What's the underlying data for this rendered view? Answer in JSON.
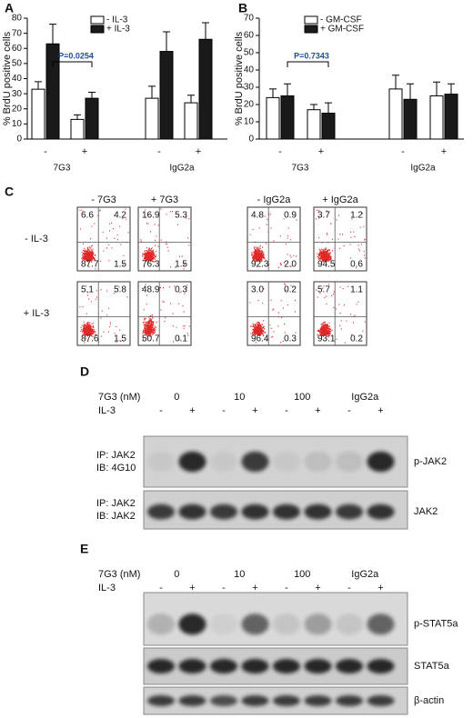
{
  "chart_data": [
    {
      "type": "bar",
      "panel": "A",
      "ylabel": "% BrdU positive cells",
      "categories": [
        "-",
        "+",
        "-",
        "+"
      ],
      "group_labels": [
        "7G3",
        "IgG2a"
      ],
      "series": [
        {
          "name": "- IL-3",
          "color": "#ffffff",
          "values": [
            33,
            13,
            27,
            24
          ],
          "errors": [
            5,
            3,
            8,
            5
          ]
        },
        {
          "name": "+ IL-3",
          "color": "#1a1a1a",
          "values": [
            63,
            27,
            58,
            66
          ],
          "errors": [
            13,
            4,
            13,
            11
          ]
        }
      ],
      "ylim": [
        0,
        80
      ],
      "yticks": [
        0,
        10,
        20,
        30,
        40,
        50,
        60,
        70,
        80
      ],
      "annotations": [
        "P=0.0254"
      ]
    },
    {
      "type": "bar",
      "panel": "B",
      "ylabel": "% BrdU positive cells",
      "categories": [
        "-",
        "+",
        "-",
        "+"
      ],
      "group_labels": [
        "7G3",
        "IgG2a"
      ],
      "series": [
        {
          "name": "- GM-CSF",
          "color": "#ffffff",
          "values": [
            24,
            17,
            29,
            25
          ],
          "errors": [
            5,
            3,
            8,
            8
          ]
        },
        {
          "name": "+ GM-CSF",
          "color": "#1a1a1a",
          "values": [
            25,
            15,
            23,
            26
          ],
          "errors": [
            7,
            6,
            9,
            6
          ]
        }
      ],
      "ylim": [
        0,
        70
      ],
      "yticks": [
        0,
        10,
        20,
        30,
        40,
        50,
        60,
        70
      ],
      "annotations": [
        "P=0.7343"
      ]
    }
  ],
  "panel_c": {
    "label": "C",
    "columns": [
      "- 7G3",
      "+ 7G3",
      "- IgG2a",
      "+ IgG2a"
    ],
    "rows": [
      "- IL-3",
      "+ IL-3"
    ],
    "quadrants": [
      [
        [
          "6.6",
          "4.2",
          "87.7",
          "1.5"
        ],
        [
          "16.9",
          "5.3",
          "76.3",
          "1.5"
        ],
        [
          "4.8",
          "0.9",
          "92.3",
          "2.0"
        ],
        [
          "3.7",
          "1.2",
          "94.5",
          "0.6"
        ]
      ],
      [
        [
          "5.1",
          "5.8",
          "87.6",
          "1.5"
        ],
        [
          "48.9",
          "0.3",
          "50.7",
          "0.1"
        ],
        [
          "3.0",
          "0.2",
          "96.4",
          "0.3"
        ],
        [
          "5.7",
          "1.1",
          "93.1",
          "0.2"
        ]
      ]
    ]
  },
  "panel_d": {
    "label": "D",
    "dose_label": "7G3 (nM)",
    "doses": [
      "0",
      "10",
      "100",
      "IgG2a"
    ],
    "treatment_label": "IL-3",
    "signs": [
      "-",
      "+",
      "-",
      "+",
      "-",
      "+",
      "-",
      "+"
    ],
    "blots": [
      {
        "left": [
          "IP: JAK2",
          "IB: 4G10"
        ],
        "right": "p-JAK2"
      },
      {
        "left": [
          "IP: JAK2",
          "IB: JAK2"
        ],
        "right": "JAK2"
      }
    ]
  },
  "panel_e": {
    "label": "E",
    "dose_label": "7G3 (nM)",
    "doses": [
      "0",
      "10",
      "100",
      "IgG2a"
    ],
    "treatment_label": "IL-3",
    "signs": [
      "-",
      "+",
      "-",
      "+",
      "-",
      "+",
      "-",
      "+"
    ],
    "blots": [
      {
        "right": "p-STAT5a"
      },
      {
        "right": "STAT5a"
      },
      {
        "right": "β-actin"
      }
    ]
  }
}
